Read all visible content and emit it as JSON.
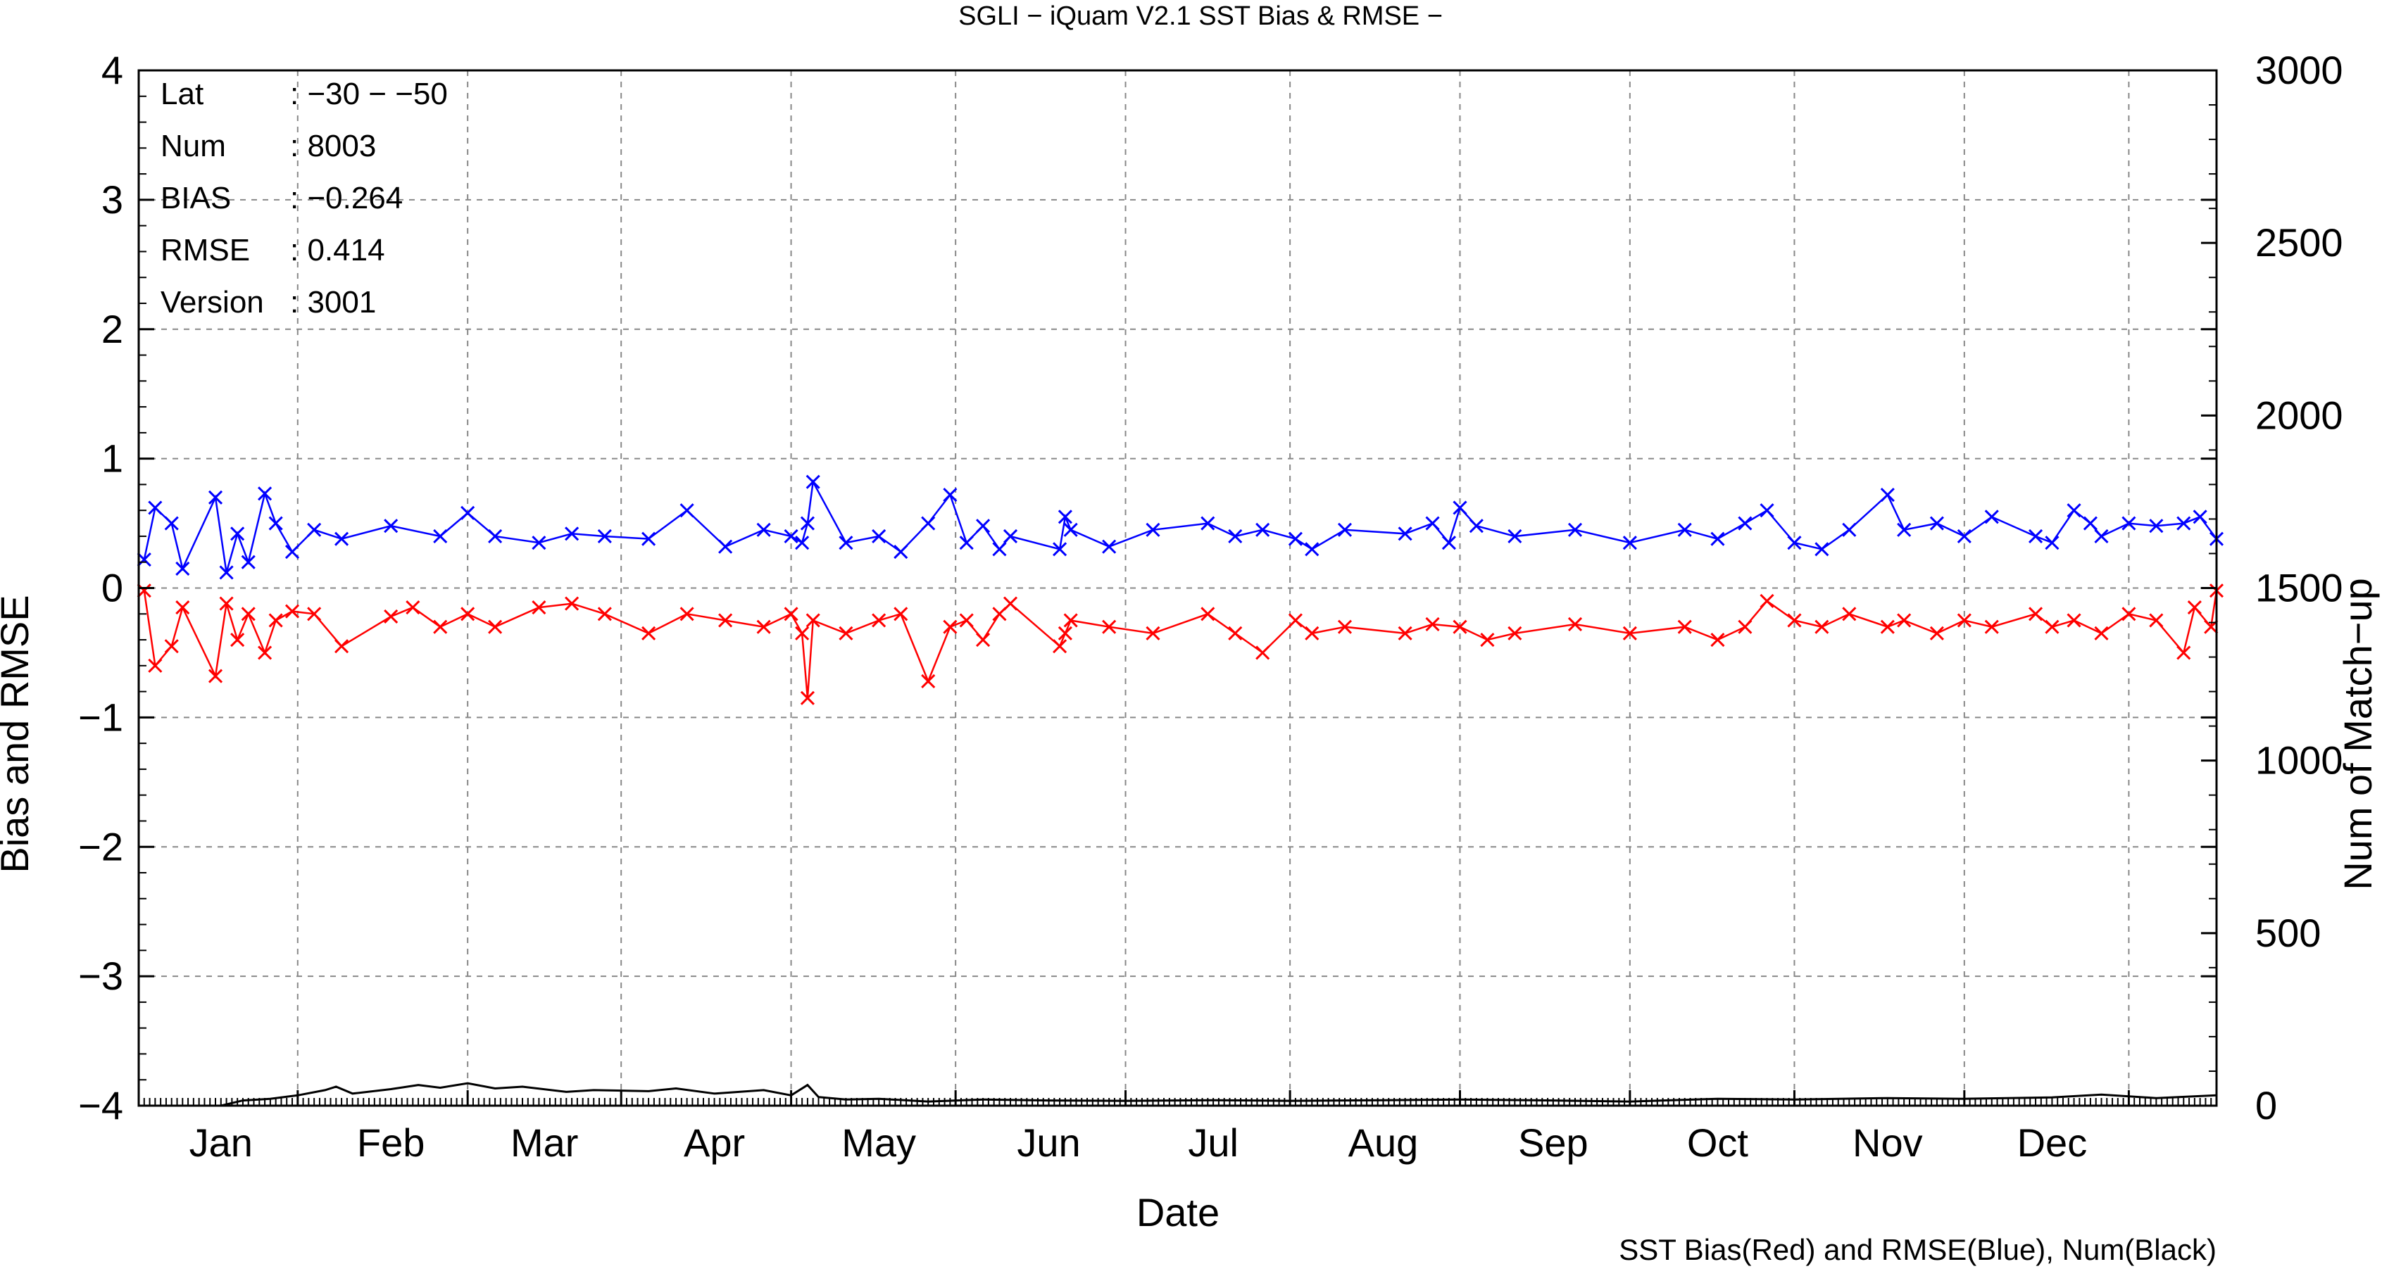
{
  "chart_data": {
    "type": "line",
    "title": "SGLI − iQuam V2.1 SST Bias & RMSE  −",
    "xlabel": "Date",
    "ylabel": "Bias and RMSE",
    "y2label": "Num of Match−up",
    "ylim": [
      -4,
      4
    ],
    "y2lim": [
      0,
      3000
    ],
    "xlim": [
      "2020-12-17",
      "2021-12-31"
    ],
    "yticks": [
      "4",
      "3",
      "2",
      "1",
      "0",
      "−1",
      "−2",
      "−3",
      "−4"
    ],
    "y2ticks": [
      "3000",
      "2500",
      "2000",
      "1500",
      "1000",
      "500",
      "0"
    ],
    "months": [
      "Jan",
      "Feb",
      "Mar",
      "Apr",
      "May",
      "Jun",
      "Jul",
      "Aug",
      "Sep",
      "Oct",
      "Nov",
      "Dec"
    ],
    "grid": true,
    "note": "SST Bias(Red) and RMSE(Blue), Num(Black)",
    "stats": {
      "lat_label": "Lat",
      "lat_value": ": −30 − −50",
      "num_label": "Num",
      "num_value": ": 8003",
      "bias_label": "BIAS",
      "bias_value": ": −0.264",
      "rmse_label": "RMSE",
      "rmse_value": ": 0.414",
      "version_label": "Version",
      "version_value": ": 3001"
    },
    "colors": {
      "bias": "#ff0000",
      "rmse": "#0000ff",
      "num": "#000000"
    },
    "series": [
      {
        "key": "rmse",
        "x": [
          "2020-12-18",
          "2020-12-20",
          "2020-12-23",
          "2020-12-25",
          "2020-12-31",
          "2021-01-02",
          "2021-01-04",
          "2021-01-06",
          "2021-01-09",
          "2021-01-11",
          "2021-01-14",
          "2021-01-18",
          "2021-01-23",
          "2021-02-01",
          "2021-02-10",
          "2021-02-15",
          "2021-02-20",
          "2021-02-28",
          "2021-03-06",
          "2021-03-12",
          "2021-03-20",
          "2021-03-27",
          "2021-04-03",
          "2021-04-10",
          "2021-04-15",
          "2021-04-17",
          "2021-04-18",
          "2021-04-19",
          "2021-04-25",
          "2021-05-01",
          "2021-05-05",
          "2021-05-10",
          "2021-05-14",
          "2021-05-17",
          "2021-05-20",
          "2021-05-23",
          "2021-05-25",
          "2021-06-03",
          "2021-06-04",
          "2021-06-05",
          "2021-06-12",
          "2021-06-20",
          "2021-06-30",
          "2021-07-05",
          "2021-07-10",
          "2021-07-16",
          "2021-07-19",
          "2021-07-25",
          "2021-08-05",
          "2021-08-10",
          "2021-08-13",
          "2021-08-15",
          "2021-08-18",
          "2021-08-25",
          "2021-09-05",
          "2021-09-15",
          "2021-09-25",
          "2021-10-01",
          "2021-10-06",
          "2021-10-10",
          "2021-10-15",
          "2021-10-20",
          "2021-10-25",
          "2021-11-01",
          "2021-11-04",
          "2021-11-10",
          "2021-11-15",
          "2021-11-20",
          "2021-11-28",
          "2021-12-01",
          "2021-12-05",
          "2021-12-08",
          "2021-12-10",
          "2021-12-15",
          "2021-12-20",
          "2021-12-25",
          "2021-12-28",
          "2021-12-31"
        ],
        "y": [
          0.22,
          0.62,
          0.5,
          0.15,
          0.7,
          0.12,
          0.42,
          0.2,
          0.73,
          0.5,
          0.28,
          0.45,
          0.38,
          0.48,
          0.4,
          0.58,
          0.4,
          0.35,
          0.42,
          0.4,
          0.38,
          0.6,
          0.32,
          0.45,
          0.4,
          0.35,
          0.5,
          0.82,
          0.35,
          0.4,
          0.28,
          0.5,
          0.72,
          0.35,
          0.48,
          0.3,
          0.4,
          0.3,
          0.55,
          0.45,
          0.32,
          0.45,
          0.5,
          0.4,
          0.45,
          0.38,
          0.3,
          0.45,
          0.42,
          0.5,
          0.35,
          0.62,
          0.48,
          0.4,
          0.45,
          0.35,
          0.45,
          0.38,
          0.5,
          0.6,
          0.35,
          0.3,
          0.45,
          0.72,
          0.45,
          0.5,
          0.4,
          0.55,
          0.4,
          0.35,
          0.6,
          0.5,
          0.4,
          0.5,
          0.48,
          0.5,
          0.55,
          0.38
        ]
      },
      {
        "key": "bias",
        "x": [
          "2020-12-18",
          "2020-12-20",
          "2020-12-23",
          "2020-12-25",
          "2020-12-31",
          "2021-01-02",
          "2021-01-04",
          "2021-01-06",
          "2021-01-09",
          "2021-01-11",
          "2021-01-14",
          "2021-01-18",
          "2021-01-23",
          "2021-02-01",
          "2021-02-05",
          "2021-02-10",
          "2021-02-15",
          "2021-02-20",
          "2021-02-28",
          "2021-03-06",
          "2021-03-12",
          "2021-03-20",
          "2021-03-27",
          "2021-04-03",
          "2021-04-10",
          "2021-04-15",
          "2021-04-17",
          "2021-04-18",
          "2021-04-19",
          "2021-04-25",
          "2021-05-01",
          "2021-05-05",
          "2021-05-10",
          "2021-05-14",
          "2021-05-17",
          "2021-05-20",
          "2021-05-23",
          "2021-05-25",
          "2021-06-03",
          "2021-06-04",
          "2021-06-05",
          "2021-06-12",
          "2021-06-20",
          "2021-06-30",
          "2021-07-05",
          "2021-07-10",
          "2021-07-16",
          "2021-07-19",
          "2021-07-25",
          "2021-08-05",
          "2021-08-10",
          "2021-08-15",
          "2021-08-20",
          "2021-08-25",
          "2021-09-05",
          "2021-09-15",
          "2021-09-25",
          "2021-10-01",
          "2021-10-06",
          "2021-10-10",
          "2021-10-15",
          "2021-10-20",
          "2021-10-25",
          "2021-11-01",
          "2021-11-04",
          "2021-11-10",
          "2021-11-15",
          "2021-11-20",
          "2021-11-28",
          "2021-12-01",
          "2021-12-05",
          "2021-12-10",
          "2021-12-15",
          "2021-12-20",
          "2021-12-25",
          "2021-12-27",
          "2021-12-30",
          "2021-12-31"
        ],
        "y": [
          -0.02,
          -0.6,
          -0.45,
          -0.15,
          -0.68,
          -0.12,
          -0.4,
          -0.2,
          -0.5,
          -0.25,
          -0.18,
          -0.2,
          -0.45,
          -0.22,
          -0.15,
          -0.3,
          -0.2,
          -0.3,
          -0.15,
          -0.12,
          -0.2,
          -0.35,
          -0.2,
          -0.25,
          -0.3,
          -0.2,
          -0.35,
          -0.85,
          -0.25,
          -0.35,
          -0.25,
          -0.2,
          -0.72,
          -0.3,
          -0.25,
          -0.4,
          -0.2,
          -0.12,
          -0.45,
          -0.35,
          -0.25,
          -0.3,
          -0.35,
          -0.2,
          -0.35,
          -0.5,
          -0.25,
          -0.35,
          -0.3,
          -0.35,
          -0.28,
          -0.3,
          -0.4,
          -0.35,
          -0.28,
          -0.35,
          -0.3,
          -0.4,
          -0.3,
          -0.1,
          -0.25,
          -0.3,
          -0.2,
          -0.3,
          -0.25,
          -0.35,
          -0.25,
          -0.3,
          -0.2,
          -0.3,
          -0.25,
          -0.35,
          -0.2,
          -0.25,
          -0.5,
          -0.15,
          -0.3,
          -0.02
        ]
      },
      {
        "key": "num",
        "x": [
          "2020-12-17",
          "2021-01-01",
          "2021-01-05",
          "2021-01-10",
          "2021-01-15",
          "2021-01-20",
          "2021-01-22",
          "2021-01-25",
          "2021-02-01",
          "2021-02-06",
          "2021-02-10",
          "2021-02-15",
          "2021-02-20",
          "2021-02-25",
          "2021-03-05",
          "2021-03-10",
          "2021-03-20",
          "2021-03-25",
          "2021-04-01",
          "2021-04-10",
          "2021-04-15",
          "2021-04-18",
          "2021-04-20",
          "2021-04-25",
          "2021-05-01",
          "2021-05-10",
          "2021-05-20",
          "2021-06-01",
          "2021-06-15",
          "2021-07-01",
          "2021-07-15",
          "2021-08-01",
          "2021-08-15",
          "2021-09-01",
          "2021-09-15",
          "2021-10-01",
          "2021-10-15",
          "2021-11-01",
          "2021-11-15",
          "2021-12-01",
          "2021-12-10",
          "2021-12-20",
          "2021-12-31"
        ],
        "y": [
          0,
          0,
          15,
          20,
          30,
          45,
          55,
          35,
          48,
          60,
          52,
          65,
          50,
          55,
          40,
          45,
          42,
          50,
          35,
          45,
          30,
          60,
          25,
          18,
          20,
          12,
          18,
          15,
          14,
          16,
          14,
          16,
          18,
          15,
          12,
          20,
          18,
          22,
          20,
          24,
          32,
          22,
          30
        ]
      }
    ]
  }
}
